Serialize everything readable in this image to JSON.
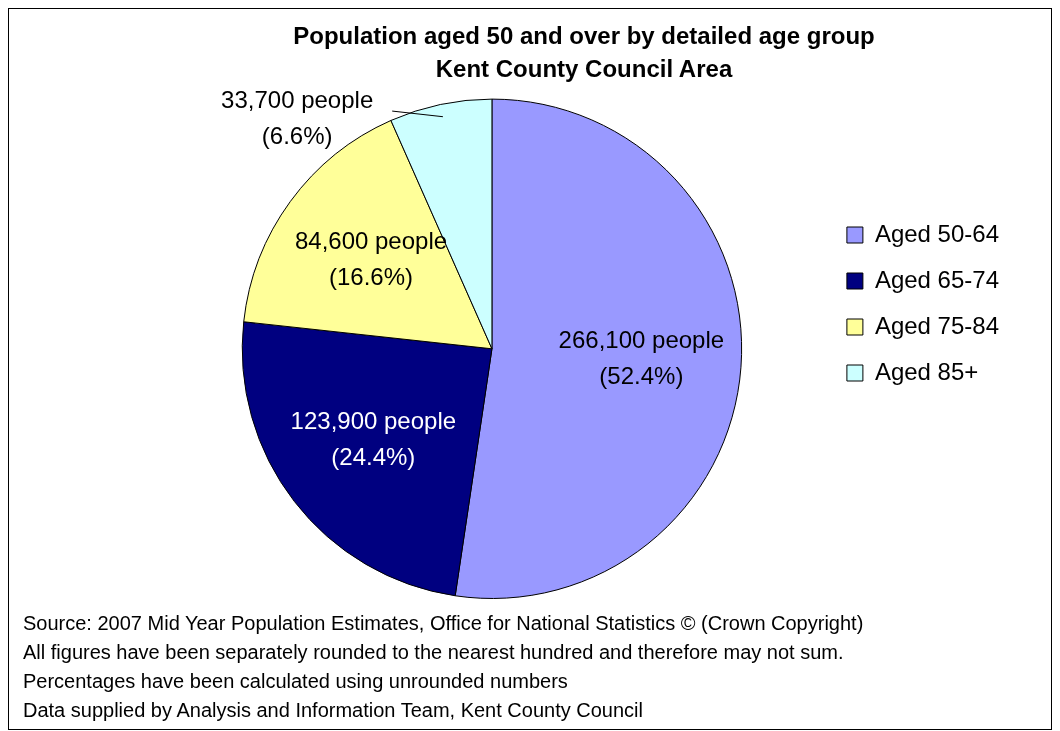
{
  "chart_data": {
    "type": "pie",
    "title": "Population aged 50 and over by detailed age group",
    "subtitle": "Kent County Council Area",
    "categories": [
      "Aged 50-64",
      "Aged 65-74",
      "Aged 75-84",
      "Aged 85+"
    ],
    "values": [
      266100,
      123900,
      84600,
      33700
    ],
    "colors": [
      "#9999ff",
      "#000080",
      "#ffff99",
      "#ccffff"
    ],
    "value_labels": [
      "266,100 people\n(52.4%)",
      "123,900 people\n(24.4%)",
      "84,600 people\n(16.6%)",
      "33,700 people\n(6.6%)"
    ],
    "legend": "right",
    "annotations": [
      "Source: 2007 Mid Year Population Estimates, Office for National Statistics © (Crown Copyright)",
      "All figures have been separately rounded to the nearest hundred and therefore may not sum.",
      "Percentages have been calculated using unrounded numbers",
      "Data supplied by Analysis and Information Team, Kent County Council"
    ]
  }
}
